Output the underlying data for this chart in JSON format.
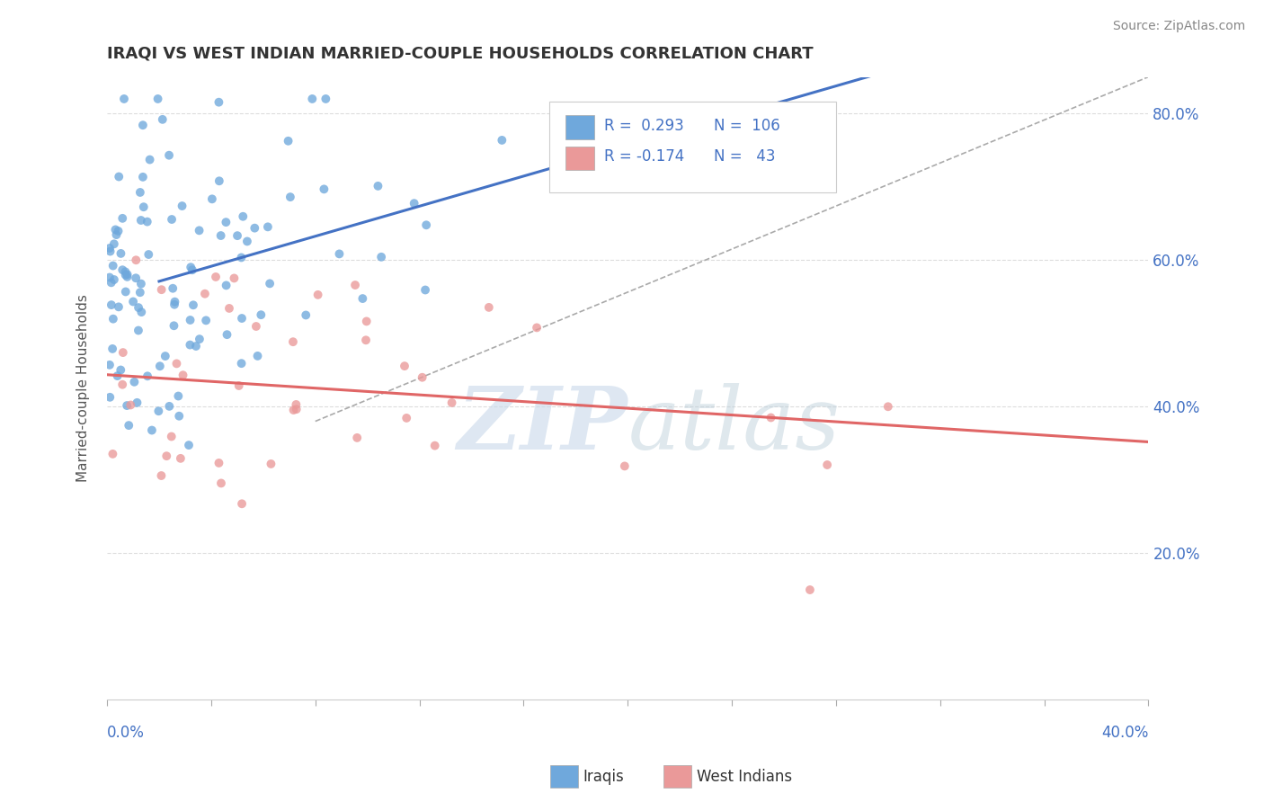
{
  "title": "IRAQI VS WEST INDIAN MARRIED-COUPLE HOUSEHOLDS CORRELATION CHART",
  "source": "Source: ZipAtlas.com",
  "ylabel_ticks": [
    0.2,
    0.4,
    0.6,
    0.8
  ],
  "ylabel_labels": [
    "20.0%",
    "40.0%",
    "60.0%",
    "80.0%"
  ],
  "blue_color": "#6fa8dc",
  "pink_color": "#ea9999",
  "trend_blue": "#4472c4",
  "trend_pink": "#e06666",
  "trend_dash_color": "#aaaaaa",
  "watermark_zip_color": "#c8d8ea",
  "watermark_atlas_color": "#b8ccd8",
  "background_color": "#ffffff",
  "grid_color": "#dddddd",
  "title_color": "#333333",
  "axis_label_color": "#4472c4",
  "xlim": [
    0.0,
    0.4
  ],
  "ylim": [
    0.0,
    0.85
  ]
}
